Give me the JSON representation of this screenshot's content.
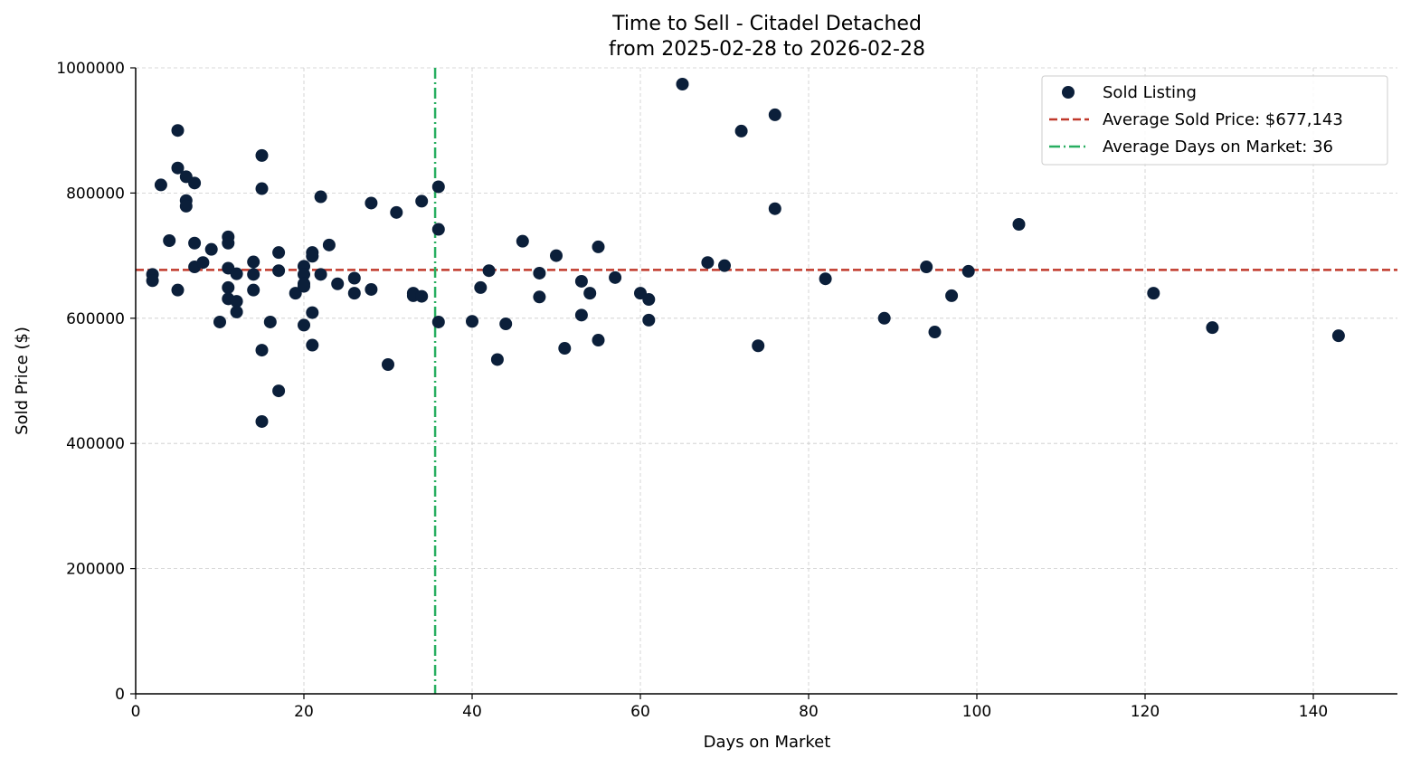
{
  "chart_data": {
    "type": "scatter",
    "title": "Time to Sell - Citadel Detached",
    "subtitle": "from 2025-02-28 to 2026-02-28",
    "xlabel": "Days on Market",
    "ylabel": "Sold Price ($)",
    "xlim": [
      0,
      150
    ],
    "ylim": [
      0,
      1000000
    ],
    "xticks": [
      0,
      20,
      40,
      60,
      80,
      100,
      120,
      140
    ],
    "yticks": [
      0,
      200000,
      400000,
      600000,
      800000,
      1000000
    ],
    "grid": true,
    "legend_position": "top-right",
    "colors": {
      "points": "#0b1f3a",
      "avg_price": "#c0392b",
      "avg_days": "#27ae60"
    },
    "legend": [
      {
        "label": "Sold Listing",
        "kind": "marker"
      },
      {
        "label": "Average Sold Price: $677,143",
        "kind": "dashed"
      },
      {
        "label": "Average Days on Market: 36",
        "kind": "dashdot"
      }
    ],
    "avg_price": 677143,
    "avg_days": 35.6,
    "series": [
      {
        "name": "Sold Listing",
        "points": [
          [
            2,
            670000
          ],
          [
            2,
            660000
          ],
          [
            3,
            813000
          ],
          [
            4,
            724000
          ],
          [
            5,
            900000
          ],
          [
            5,
            840000
          ],
          [
            5,
            645000
          ],
          [
            6,
            826000
          ],
          [
            6,
            788000
          ],
          [
            6,
            779000
          ],
          [
            7,
            816000
          ],
          [
            7,
            720000
          ],
          [
            7,
            682000
          ],
          [
            8,
            689000
          ],
          [
            9,
            710000
          ],
          [
            10,
            594000
          ],
          [
            11,
            730000
          ],
          [
            11,
            720000
          ],
          [
            11,
            680000
          ],
          [
            11,
            649000
          ],
          [
            11,
            631000
          ],
          [
            12,
            671000
          ],
          [
            12,
            627000
          ],
          [
            12,
            610000
          ],
          [
            14,
            690000
          ],
          [
            14,
            670000
          ],
          [
            14,
            645000
          ],
          [
            15,
            860000
          ],
          [
            15,
            807000
          ],
          [
            15,
            549000
          ],
          [
            15,
            435000
          ],
          [
            16,
            594000
          ],
          [
            17,
            705000
          ],
          [
            17,
            676000
          ],
          [
            17,
            484000
          ],
          [
            19,
            640000
          ],
          [
            20,
            683000
          ],
          [
            20,
            670000
          ],
          [
            20,
            655000
          ],
          [
            20,
            651000
          ],
          [
            20,
            589000
          ],
          [
            21,
            705000
          ],
          [
            21,
            699000
          ],
          [
            21,
            609000
          ],
          [
            21,
            557000
          ],
          [
            22,
            794000
          ],
          [
            22,
            670000
          ],
          [
            23,
            717000
          ],
          [
            24,
            655000
          ],
          [
            26,
            664000
          ],
          [
            26,
            640000
          ],
          [
            28,
            784000
          ],
          [
            28,
            646000
          ],
          [
            30,
            526000
          ],
          [
            31,
            769000
          ],
          [
            33,
            640000
          ],
          [
            33,
            636000
          ],
          [
            34,
            787000
          ],
          [
            34,
            635000
          ],
          [
            36,
            810000
          ],
          [
            36,
            742000
          ],
          [
            36,
            594000
          ],
          [
            40,
            595000
          ],
          [
            41,
            649000
          ],
          [
            42,
            676000
          ],
          [
            43,
            534000
          ],
          [
            44,
            591000
          ],
          [
            46,
            723000
          ],
          [
            48,
            672000
          ],
          [
            48,
            634000
          ],
          [
            50,
            700000
          ],
          [
            51,
            552000
          ],
          [
            53,
            659000
          ],
          [
            53,
            605000
          ],
          [
            54,
            640000
          ],
          [
            55,
            714000
          ],
          [
            55,
            565000
          ],
          [
            57,
            665000
          ],
          [
            60,
            640000
          ],
          [
            61,
            630000
          ],
          [
            61,
            597000
          ],
          [
            65,
            974000
          ],
          [
            68,
            689000
          ],
          [
            70,
            684000
          ],
          [
            72,
            899000
          ],
          [
            74,
            556000
          ],
          [
            76,
            925000
          ],
          [
            76,
            775000
          ],
          [
            82,
            663000
          ],
          [
            89,
            600000
          ],
          [
            94,
            682000
          ],
          [
            95,
            578000
          ],
          [
            97,
            636000
          ],
          [
            99,
            675000
          ],
          [
            105,
            750000
          ],
          [
            121,
            640000
          ],
          [
            128,
            585000
          ],
          [
            143,
            572000
          ]
        ]
      }
    ]
  }
}
